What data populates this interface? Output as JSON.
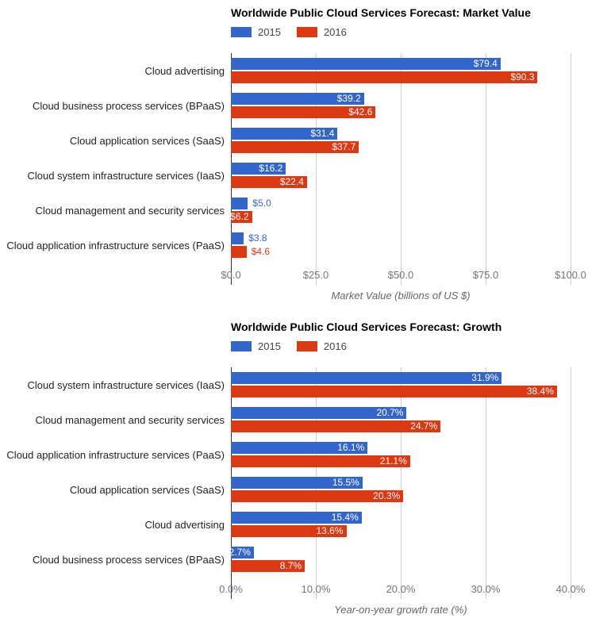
{
  "colors": {
    "series_2015": "#3366CC",
    "series_2016": "#DC3912",
    "gridline": "#cccccc",
    "axis_baseline": "#333333",
    "tick_label": "#757575",
    "axis_title": "#666666",
    "title": "#000000",
    "background": "#ffffff"
  },
  "chart_data": [
    {
      "type": "bar",
      "orientation": "horizontal",
      "title": "Worldwide Public Cloud Services Forecast: Market Value",
      "xlabel": "Market Value (billions of US $)",
      "legend_position": "top",
      "grid": true,
      "xlim": [
        0,
        100
      ],
      "tick_values": [
        0,
        25,
        50,
        75,
        100
      ],
      "ticks": [
        "$0.0",
        "$25.0",
        "$50.0",
        "$75.0",
        "$100.0"
      ],
      "categories": [
        "Cloud advertising",
        "Cloud business process services (BPaaS)",
        "Cloud application services (SaaS)",
        "Cloud system infrastructure services (IaaS)",
        "Cloud management and security services",
        "Cloud application infrastructure services (PaaS)"
      ],
      "series": [
        {
          "name": "2015",
          "color": "#3366CC",
          "values": [
            79.4,
            39.2,
            31.4,
            16.2,
            5.0,
            3.8
          ],
          "labels": [
            "$79.4",
            "$39.2",
            "$31.4",
            "$16.2",
            "$5.0",
            "$3.8"
          ]
        },
        {
          "name": "2016",
          "color": "#DC3912",
          "values": [
            90.3,
            42.6,
            37.7,
            22.4,
            6.2,
            4.6
          ],
          "labels": [
            "$90.3",
            "$42.6",
            "$37.7",
            "$22.4",
            "$6.2",
            "$4.6"
          ]
        }
      ]
    },
    {
      "type": "bar",
      "orientation": "horizontal",
      "title": "Worldwide Public Cloud Services Forecast: Growth",
      "xlabel": "Year-on-year growth rate (%)",
      "legend_position": "top",
      "grid": true,
      "xlim": [
        0,
        40
      ],
      "tick_values": [
        0,
        10,
        20,
        30,
        40
      ],
      "ticks": [
        "0.0%",
        "10.0%",
        "20.0%",
        "30.0%",
        "40.0%"
      ],
      "categories": [
        "Cloud system infrastructure services (IaaS)",
        "Cloud management and security services",
        "Cloud application infrastructure services (PaaS)",
        "Cloud application services (SaaS)",
        "Cloud advertising",
        "Cloud business process services (BPaaS)"
      ],
      "series": [
        {
          "name": "2015",
          "color": "#3366CC",
          "values": [
            31.9,
            20.7,
            16.1,
            15.5,
            15.4,
            2.7
          ],
          "labels": [
            "31.9%",
            "20.7%",
            "16.1%",
            "15.5%",
            "15.4%",
            "2.7%"
          ]
        },
        {
          "name": "2016",
          "color": "#DC3912",
          "values": [
            38.4,
            24.7,
            21.1,
            20.3,
            13.6,
            8.7
          ],
          "labels": [
            "38.4%",
            "24.7%",
            "21.1%",
            "20.3%",
            "13.6%",
            "8.7%"
          ]
        }
      ]
    }
  ]
}
